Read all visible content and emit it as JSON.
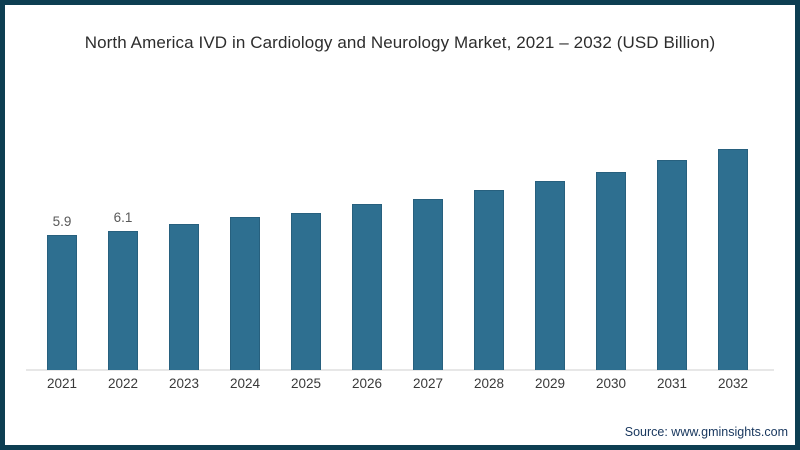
{
  "chart_data": {
    "type": "bar",
    "title": "North America IVD in Cardiology and Neurology Market, 2021 – 2032 (USD Billion)",
    "unit": "USD Billion",
    "categories": [
      "2021",
      "2022",
      "2023",
      "2024",
      "2025",
      "2026",
      "2027",
      "2028",
      "2029",
      "2030",
      "2031",
      "2032"
    ],
    "values": [
      5.9,
      6.1,
      6.4,
      6.7,
      6.9,
      7.3,
      7.5,
      7.9,
      8.3,
      8.7,
      9.2,
      9.7
    ],
    "bar_labels": [
      "5.9",
      "6.1",
      "",
      "",
      "",
      "",
      "",
      "",
      "",
      "",
      "",
      ""
    ],
    "xlabel": "",
    "ylabel": "",
    "ylim": [
      0,
      10
    ],
    "grid": false,
    "legend": false,
    "bar_color": "#2e6f90",
    "bar_edge_color": "#27607e"
  },
  "footer": {
    "source": "Source: www.gminsights.com"
  },
  "colors": {
    "frame_border": "#0d3e52",
    "background": "#ffffff",
    "title_text": "#2d2d2d",
    "tick_text": "#3a3a3a",
    "data_label_text": "#595959",
    "source_text": "#17365d",
    "axis_line": "#e7e7e7"
  }
}
